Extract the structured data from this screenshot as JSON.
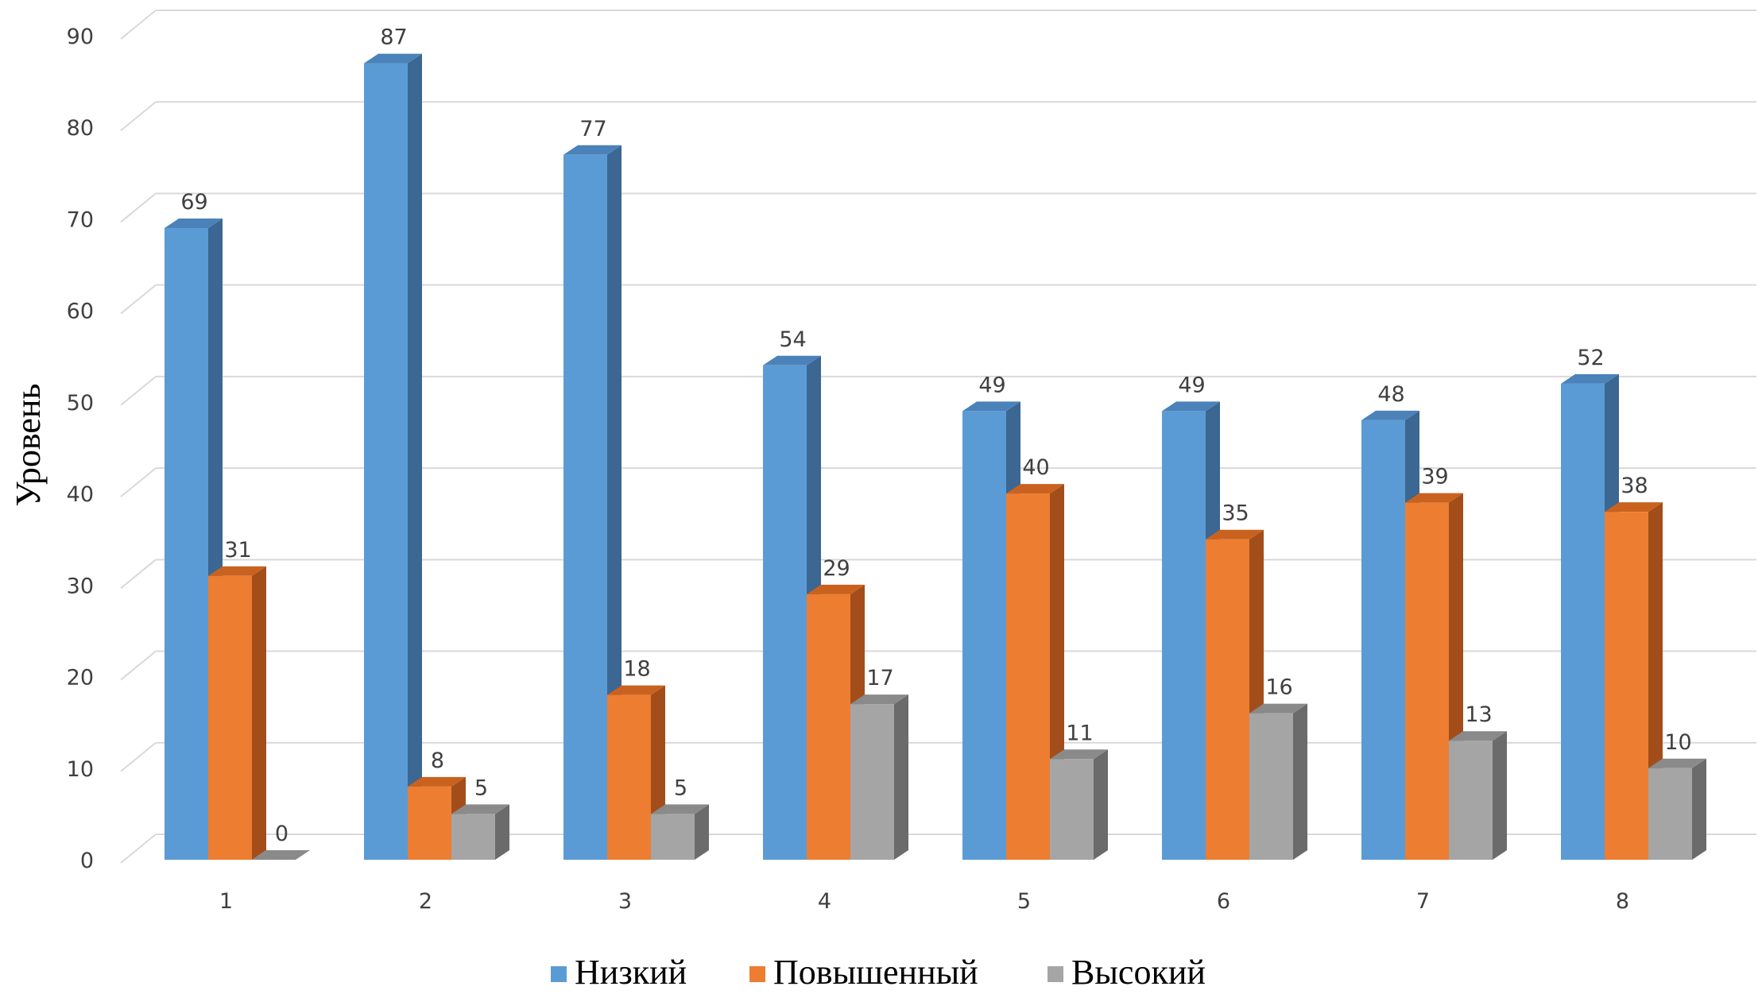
{
  "chart_data": {
    "type": "bar",
    "title": "",
    "xlabel": "",
    "ylabel": "Уровень",
    "ylim": [
      0,
      90
    ],
    "y_ticks": [
      0,
      10,
      20,
      30,
      40,
      50,
      60,
      70,
      80,
      90
    ],
    "categories": [
      "1",
      "2",
      "3",
      "4",
      "5",
      "6",
      "7",
      "8"
    ],
    "series": [
      {
        "name": "Низкий",
        "color": "#5b9bd5",
        "side_color": "#3b6792",
        "top_color": "#4a82b9",
        "values": [
          69,
          87,
          77,
          54,
          49,
          49,
          48,
          52
        ]
      },
      {
        "name": "Повышенный",
        "color": "#ed7d31",
        "side_color": "#a34e1a",
        "top_color": "#c9621f",
        "values": [
          31,
          8,
          18,
          29,
          40,
          35,
          39,
          38
        ]
      },
      {
        "name": "Высокий",
        "color": "#a5a5a5",
        "side_color": "#6b6b6b",
        "top_color": "#8a8a8a",
        "values": [
          0,
          5,
          5,
          17,
          11,
          16,
          13,
          10
        ]
      }
    ],
    "data_labels": true,
    "grid": true,
    "legend_position": "bottom",
    "style": "3d-clustered-column"
  }
}
